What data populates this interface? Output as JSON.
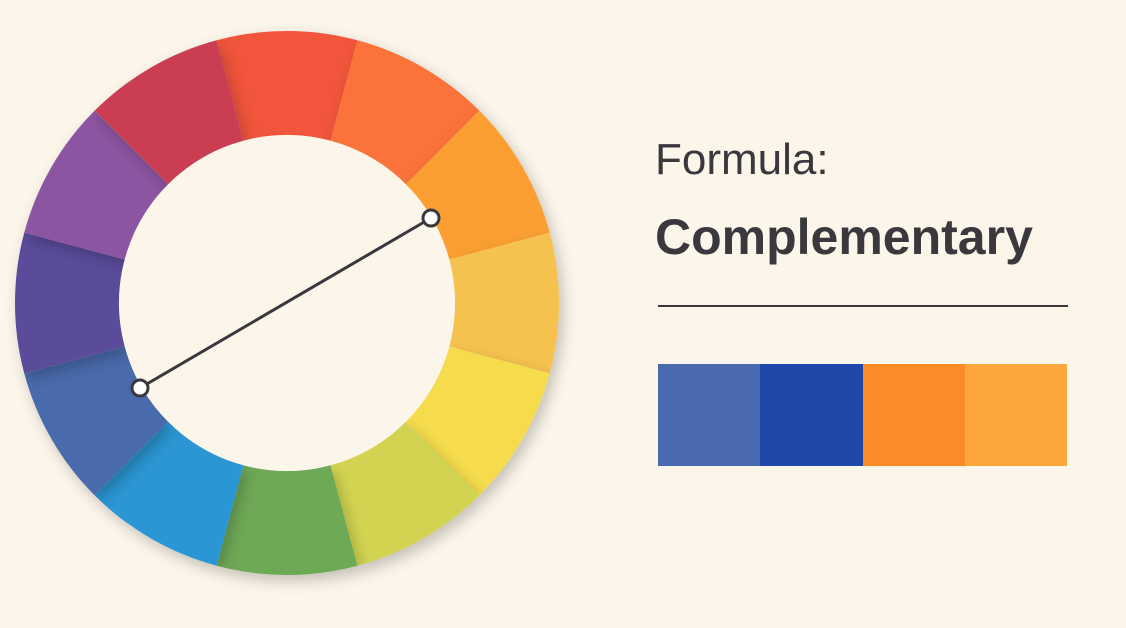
{
  "background": "#fbf5ea",
  "text_color": "#3a383d",
  "formula": {
    "label": "Formula:",
    "title": "Complementary"
  },
  "wheel": {
    "segment_colors": [
      "#f1553a",
      "#fb723a",
      "#fb9f33",
      "#f6c250",
      "#f6dc4e",
      "#d2d451",
      "#6ea957",
      "#2a96d3",
      "#4a6aad",
      "#5a4b9b",
      "#8c54a1",
      "#cb3d52"
    ],
    "complementary_pair": [
      "orange",
      "blue"
    ],
    "connector_color": "#3a383d"
  },
  "palette": {
    "swatches": [
      "#4a6ab0",
      "#2048ab",
      "#fb8b27",
      "#fca63c"
    ]
  }
}
